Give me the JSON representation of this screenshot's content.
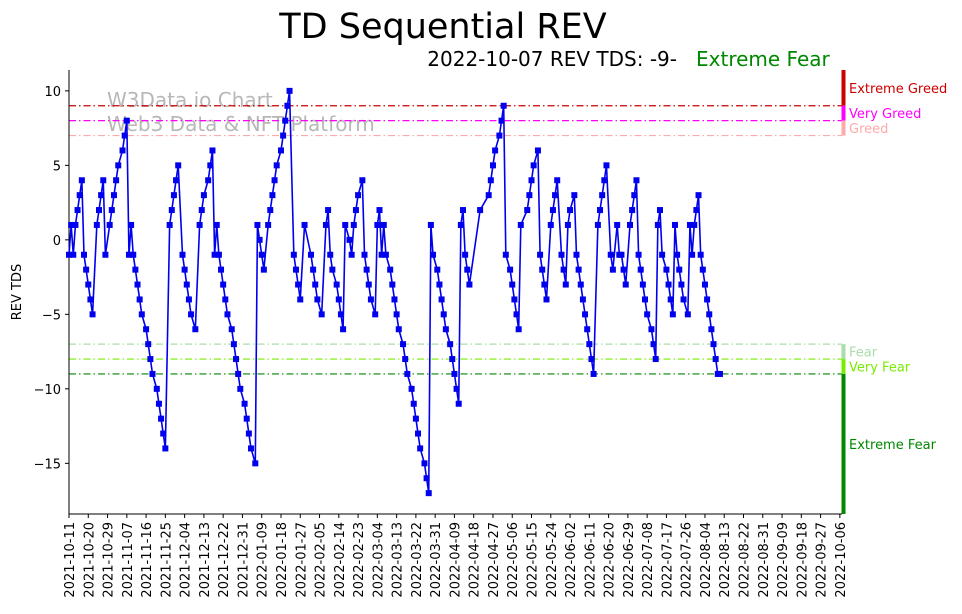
{
  "chart_data": {
    "type": "line",
    "title": "TD Sequential REV",
    "subtitle": "2022-10-07 REV TDS: -9-",
    "status_label": "Extreme Fear",
    "watermark_lines": [
      "W3Data.io Chart",
      "Web3 Data & NFT Platform"
    ],
    "xlabel": "",
    "ylabel": "REV TDS",
    "ylim": [
      -18.4,
      11.4
    ],
    "yticks": [
      10,
      5,
      0,
      -5,
      -10,
      -15
    ],
    "x_range": [
      0,
      361
    ],
    "x_ticks": [
      {
        "x": 0,
        "label": "2021-10-11"
      },
      {
        "x": 9,
        "label": "2021-10-20"
      },
      {
        "x": 18,
        "label": "2021-10-29"
      },
      {
        "x": 27,
        "label": "2021-11-07"
      },
      {
        "x": 36,
        "label": "2021-11-16"
      },
      {
        "x": 45,
        "label": "2021-11-25"
      },
      {
        "x": 54,
        "label": "2021-12-04"
      },
      {
        "x": 63,
        "label": "2021-12-13"
      },
      {
        "x": 72,
        "label": "2021-12-22"
      },
      {
        "x": 81,
        "label": "2021-12-31"
      },
      {
        "x": 90,
        "label": "2022-01-09"
      },
      {
        "x": 99,
        "label": "2022-01-18"
      },
      {
        "x": 108,
        "label": "2022-01-27"
      },
      {
        "x": 117,
        "label": "2022-02-05"
      },
      {
        "x": 126,
        "label": "2022-02-14"
      },
      {
        "x": 135,
        "label": "2022-02-23"
      },
      {
        "x": 144,
        "label": "2022-03-04"
      },
      {
        "x": 153,
        "label": "2022-03-13"
      },
      {
        "x": 162,
        "label": "2022-03-22"
      },
      {
        "x": 171,
        "label": "2022-03-31"
      },
      {
        "x": 180,
        "label": "2022-04-09"
      },
      {
        "x": 189,
        "label": "2022-04-18"
      },
      {
        "x": 198,
        "label": "2022-04-27"
      },
      {
        "x": 207,
        "label": "2022-05-06"
      },
      {
        "x": 216,
        "label": "2022-05-15"
      },
      {
        "x": 225,
        "label": "2022-05-24"
      },
      {
        "x": 234,
        "label": "2022-06-02"
      },
      {
        "x": 243,
        "label": "2022-06-11"
      },
      {
        "x": 252,
        "label": "2022-06-20"
      },
      {
        "x": 261,
        "label": "2022-06-29"
      },
      {
        "x": 270,
        "label": "2022-07-08"
      },
      {
        "x": 279,
        "label": "2022-07-17"
      },
      {
        "x": 288,
        "label": "2022-07-26"
      },
      {
        "x": 297,
        "label": "2022-08-04"
      },
      {
        "x": 306,
        "label": "2022-08-13"
      },
      {
        "x": 315,
        "label": "2022-08-22"
      },
      {
        "x": 324,
        "label": "2022-08-31"
      },
      {
        "x": 333,
        "label": "2022-09-09"
      },
      {
        "x": 342,
        "label": "2022-09-18"
      },
      {
        "x": 351,
        "label": "2022-09-27"
      },
      {
        "x": 360,
        "label": "2022-10-06"
      }
    ],
    "series": [
      {
        "name": "REV TDS",
        "color": "#0000ee",
        "points": [
          [
            0,
            -1
          ],
          [
            1,
            1
          ],
          [
            2,
            -1
          ],
          [
            3,
            1
          ],
          [
            4,
            2
          ],
          [
            5,
            3
          ],
          [
            6,
            4
          ],
          [
            7,
            -1
          ],
          [
            8,
            -2
          ],
          [
            9,
            -3
          ],
          [
            10,
            -4
          ],
          [
            11,
            -5
          ],
          [
            13,
            1
          ],
          [
            14,
            2
          ],
          [
            15,
            3
          ],
          [
            16,
            4
          ],
          [
            17,
            -1
          ],
          [
            19,
            1
          ],
          [
            20,
            2
          ],
          [
            21,
            3
          ],
          [
            22,
            4
          ],
          [
            23,
            5
          ],
          [
            25,
            6
          ],
          [
            26,
            7
          ],
          [
            27,
            8
          ],
          [
            28,
            -1
          ],
          [
            29,
            1
          ],
          [
            30,
            -1
          ],
          [
            31,
            -2
          ],
          [
            32,
            -3
          ],
          [
            33,
            -4
          ],
          [
            34,
            -5
          ],
          [
            36,
            -6
          ],
          [
            37,
            -7
          ],
          [
            38,
            -8
          ],
          [
            39,
            -9
          ],
          [
            41,
            -10
          ],
          [
            42,
            -11
          ],
          [
            43,
            -12
          ],
          [
            44,
            -13
          ],
          [
            45,
            -14
          ],
          [
            47,
            1
          ],
          [
            48,
            2
          ],
          [
            49,
            3
          ],
          [
            50,
            4
          ],
          [
            51,
            5
          ],
          [
            53,
            -1
          ],
          [
            54,
            -2
          ],
          [
            55,
            -3
          ],
          [
            56,
            -4
          ],
          [
            57,
            -5
          ],
          [
            59,
            -6
          ],
          [
            61,
            1
          ],
          [
            62,
            2
          ],
          [
            63,
            3
          ],
          [
            65,
            4
          ],
          [
            66,
            5
          ],
          [
            67,
            6
          ],
          [
            68,
            -1
          ],
          [
            69,
            1
          ],
          [
            70,
            -1
          ],
          [
            71,
            -2
          ],
          [
            72,
            -3
          ],
          [
            73,
            -4
          ],
          [
            74,
            -5
          ],
          [
            76,
            -6
          ],
          [
            77,
            -7
          ],
          [
            78,
            -8
          ],
          [
            79,
            -9
          ],
          [
            80,
            -10
          ],
          [
            82,
            -11
          ],
          [
            83,
            -12
          ],
          [
            84,
            -13
          ],
          [
            85,
            -14
          ],
          [
            87,
            -15
          ],
          [
            88,
            1
          ],
          [
            89,
            0
          ],
          [
            90,
            -1
          ],
          [
            91,
            -2
          ],
          [
            93,
            1
          ],
          [
            94,
            2
          ],
          [
            95,
            3
          ],
          [
            96,
            4
          ],
          [
            97,
            5
          ],
          [
            99,
            6
          ],
          [
            100,
            7
          ],
          [
            101,
            8
          ],
          [
            102,
            9
          ],
          [
            103,
            10
          ],
          [
            105,
            -1
          ],
          [
            106,
            -2
          ],
          [
            107,
            -3
          ],
          [
            108,
            -4
          ],
          [
            110,
            1
          ],
          [
            113,
            -1
          ],
          [
            114,
            -2
          ],
          [
            115,
            -3
          ],
          [
            116,
            -4
          ],
          [
            118,
            -5
          ],
          [
            120,
            1
          ],
          [
            121,
            2
          ],
          [
            122,
            -1
          ],
          [
            123,
            -2
          ],
          [
            125,
            -3
          ],
          [
            126,
            -4
          ],
          [
            127,
            -5
          ],
          [
            128,
            -6
          ],
          [
            129,
            1
          ],
          [
            131,
            0
          ],
          [
            132,
            -1
          ],
          [
            133,
            1
          ],
          [
            134,
            2
          ],
          [
            135,
            3
          ],
          [
            137,
            4
          ],
          [
            138,
            -1
          ],
          [
            139,
            -2
          ],
          [
            140,
            -3
          ],
          [
            141,
            -4
          ],
          [
            143,
            -5
          ],
          [
            144,
            1
          ],
          [
            145,
            2
          ],
          [
            146,
            -1
          ],
          [
            147,
            1
          ],
          [
            148,
            -1
          ],
          [
            150,
            -2
          ],
          [
            151,
            -3
          ],
          [
            152,
            -4
          ],
          [
            153,
            -5
          ],
          [
            154,
            -6
          ],
          [
            156,
            -7
          ],
          [
            157,
            -8
          ],
          [
            158,
            -9
          ],
          [
            160,
            -10
          ],
          [
            161,
            -11
          ],
          [
            162,
            -12
          ],
          [
            163,
            -13
          ],
          [
            164,
            -14
          ],
          [
            166,
            -15
          ],
          [
            167,
            -16
          ],
          [
            168,
            -17
          ],
          [
            169,
            1
          ],
          [
            170,
            -1
          ],
          [
            172,
            -2
          ],
          [
            173,
            -3
          ],
          [
            174,
            -4
          ],
          [
            175,
            -5
          ],
          [
            176,
            -6
          ],
          [
            178,
            -7
          ],
          [
            179,
            -8
          ],
          [
            180,
            -9
          ],
          [
            181,
            -10
          ],
          [
            182,
            -11
          ],
          [
            183,
            1
          ],
          [
            184,
            2
          ],
          [
            185,
            -1
          ],
          [
            186,
            -2
          ],
          [
            187,
            -3
          ],
          [
            192,
            2
          ],
          [
            196,
            3
          ],
          [
            197,
            4
          ],
          [
            198,
            5
          ],
          [
            199,
            6
          ],
          [
            201,
            7
          ],
          [
            202,
            8
          ],
          [
            203,
            9
          ],
          [
            204,
            -1
          ],
          [
            206,
            -2
          ],
          [
            207,
            -3
          ],
          [
            208,
            -4
          ],
          [
            209,
            -5
          ],
          [
            210,
            -6
          ],
          [
            211,
            1
          ],
          [
            214,
            2
          ],
          [
            215,
            3
          ],
          [
            216,
            4
          ],
          [
            217,
            5
          ],
          [
            219,
            6
          ],
          [
            220,
            -1
          ],
          [
            221,
            -2
          ],
          [
            222,
            -3
          ],
          [
            223,
            -4
          ],
          [
            225,
            1
          ],
          [
            226,
            2
          ],
          [
            227,
            3
          ],
          [
            228,
            4
          ],
          [
            230,
            -1
          ],
          [
            231,
            -2
          ],
          [
            232,
            -3
          ],
          [
            233,
            1
          ],
          [
            234,
            2
          ],
          [
            236,
            3
          ],
          [
            237,
            -1
          ],
          [
            238,
            -2
          ],
          [
            239,
            -3
          ],
          [
            240,
            -4
          ],
          [
            241,
            -5
          ],
          [
            242,
            -6
          ],
          [
            243,
            -7
          ],
          [
            244,
            -8
          ],
          [
            245,
            -9
          ],
          [
            247,
            1
          ],
          [
            248,
            2
          ],
          [
            249,
            3
          ],
          [
            250,
            4
          ],
          [
            251,
            5
          ],
          [
            253,
            -1
          ],
          [
            254,
            -2
          ],
          [
            256,
            1
          ],
          [
            257,
            -1
          ],
          [
            258,
            -1
          ],
          [
            259,
            -2
          ],
          [
            260,
            -3
          ],
          [
            262,
            1
          ],
          [
            263,
            2
          ],
          [
            264,
            3
          ],
          [
            265,
            4
          ],
          [
            266,
            -1
          ],
          [
            267,
            -2
          ],
          [
            268,
            -3
          ],
          [
            269,
            -4
          ],
          [
            270,
            -5
          ],
          [
            272,
            -6
          ],
          [
            273,
            -7
          ],
          [
            274,
            -8
          ],
          [
            275,
            1
          ],
          [
            276,
            2
          ],
          [
            277,
            -1
          ],
          [
            279,
            -2
          ],
          [
            280,
            -3
          ],
          [
            281,
            -4
          ],
          [
            282,
            -5
          ],
          [
            283,
            1
          ],
          [
            284,
            -1
          ],
          [
            285,
            -2
          ],
          [
            286,
            -3
          ],
          [
            287,
            -4
          ],
          [
            289,
            -5
          ],
          [
            290,
            1
          ],
          [
            291,
            -1
          ],
          [
            292,
            1
          ],
          [
            293,
            2
          ],
          [
            294,
            3
          ],
          [
            295,
            -1
          ],
          [
            296,
            -2
          ],
          [
            297,
            -3
          ],
          [
            298,
            -4
          ],
          [
            299,
            -5
          ],
          [
            300,
            -6
          ],
          [
            301,
            -7
          ],
          [
            302,
            -8
          ],
          [
            303,
            -9
          ],
          [
            304,
            -9
          ]
        ]
      }
    ],
    "reference_lines": [
      {
        "name": "Extreme Greed",
        "y": 9,
        "color": "#cc0000",
        "band": [
          9,
          11.4
        ]
      },
      {
        "name": "Very Greed",
        "y": 8,
        "color": "#ff00ff",
        "band": [
          8,
          9
        ]
      },
      {
        "name": "Greed",
        "y": 7,
        "color": "#ffaaaa",
        "band": [
          7,
          8
        ]
      },
      {
        "name": "Fear",
        "y": -7,
        "color": "#aaddaa",
        "band": [
          -8,
          -7
        ]
      },
      {
        "name": "Very Fear",
        "y": -8,
        "color": "#77ee00",
        "band": [
          -9,
          -8
        ]
      },
      {
        "name": "Extreme Fear",
        "y": -9,
        "color": "#008800",
        "band": [
          -18.4,
          -9
        ]
      }
    ],
    "status_color": "#008800",
    "grid": false
  }
}
